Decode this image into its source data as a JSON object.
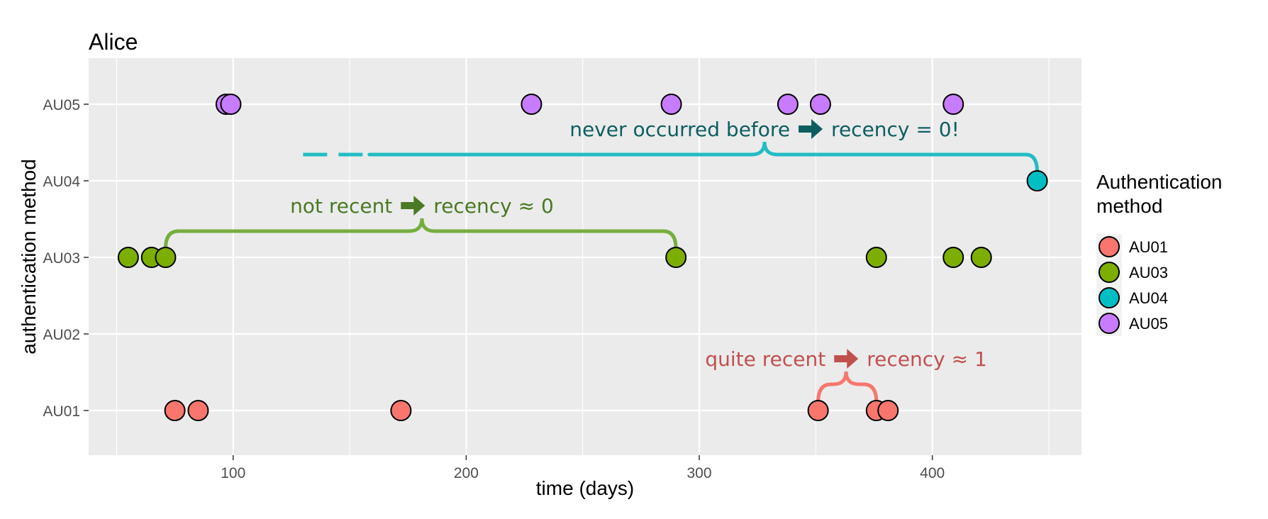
{
  "chart_data": {
    "type": "scatter",
    "title": "Alice",
    "xlabel": "time (days)",
    "ylabel": "authentication method",
    "xlim": [
      38,
      464
    ],
    "x_ticks": [
      100,
      200,
      300,
      400
    ],
    "y_categories": [
      "AU01",
      "AU02",
      "AU03",
      "AU04",
      "AU05"
    ],
    "grid": true,
    "legend": {
      "title": "Authentication method",
      "position": "right",
      "entries": [
        {
          "label": "AU01",
          "color": "#F8766D"
        },
        {
          "label": "AU03",
          "color": "#7CAE00"
        },
        {
          "label": "AU04",
          "color": "#00BFC4"
        },
        {
          "label": "AU05",
          "color": "#C77CFF"
        }
      ]
    },
    "series": [
      {
        "name": "AU01",
        "color": "#F8766D",
        "x": [
          75,
          85,
          172,
          351,
          376,
          381
        ],
        "y": "AU01"
      },
      {
        "name": "AU03",
        "color": "#7CAE00",
        "x": [
          55,
          65,
          71,
          290,
          376,
          409,
          421
        ],
        "y": "AU03"
      },
      {
        "name": "AU04",
        "color": "#00BFC4",
        "x": [
          445
        ],
        "y": "AU04"
      },
      {
        "name": "AU05",
        "color": "#C77CFF",
        "x": [
          97,
          99,
          228,
          288,
          338,
          352,
          409
        ],
        "y": "AU05"
      }
    ],
    "annotations": [
      {
        "text_a": "never occurred before",
        "text_b": "recency = 0!",
        "color": "#0E5E61",
        "brace_color": "#22BCC4",
        "x_start": 130,
        "x_end": 445,
        "x_peak": 328,
        "y": "AU04"
      },
      {
        "text_a": "not recent",
        "text_b": "recency ≈ 0",
        "color": "#4A7A24",
        "brace_color": "#76AE3E",
        "x_start": 71,
        "x_end": 290,
        "x_peak": 181,
        "y": "AU03"
      },
      {
        "text_a": "quite recent",
        "text_b": "recency ≈ 1",
        "color": "#C0504D",
        "brace_color": "#F8766D",
        "x_start": 351,
        "x_end": 376,
        "x_peak": 363,
        "y": "AU01"
      }
    ]
  }
}
